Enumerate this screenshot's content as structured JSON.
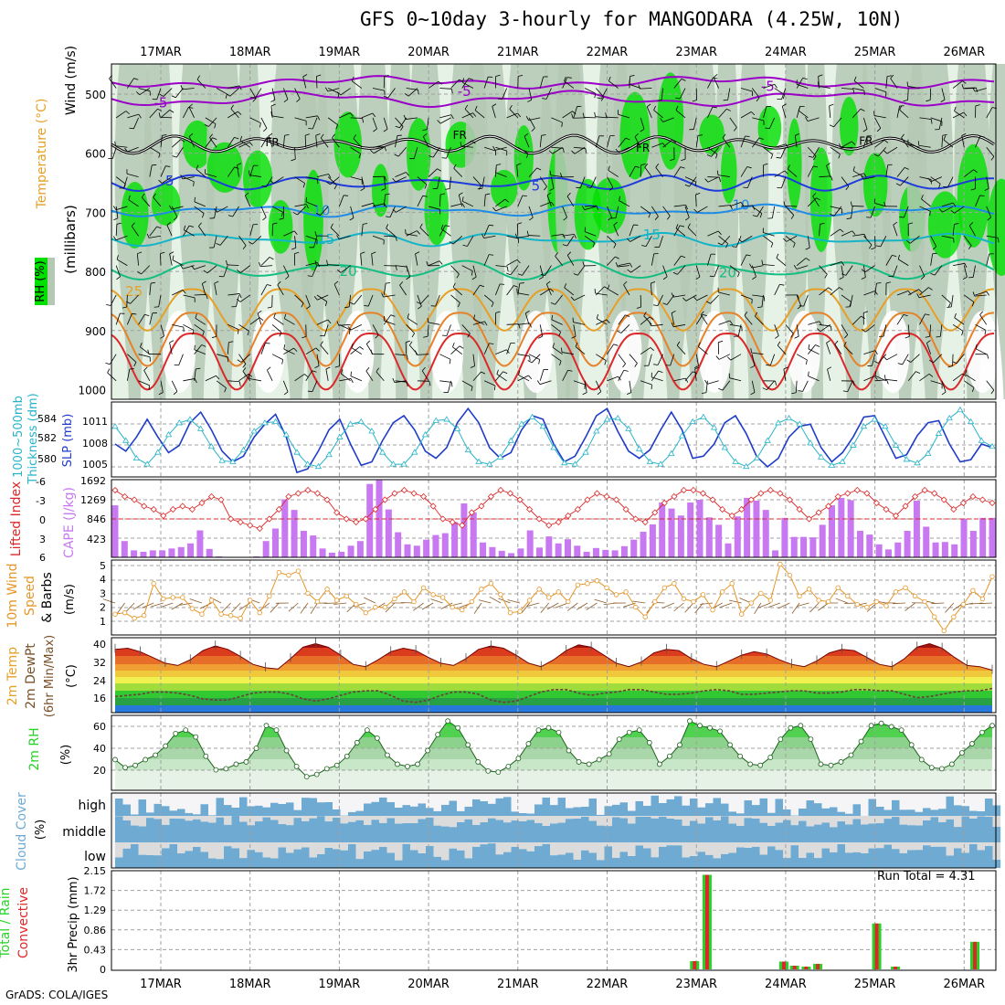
{
  "title": "GFS 0~10day 3-hourly for MANGODARA (4.25W, 10N)",
  "footer": "GrADS: COLA/IGES",
  "run_total_label": "Run Total = 4.31",
  "colors": {
    "rh_green": "#00e000",
    "rh_gray": "#b4c8b4",
    "rh_pale": "#e6f2e6",
    "t_purple": "#9b00c8",
    "t_blue": "#1e3cdc",
    "t_lightblue": "#1e8ce6",
    "t_cyan": "#14b4c8",
    "t_teal": "#14be82",
    "t_orange": "#e6a028",
    "t_red": "#dc2828",
    "slp": "#1e3cc8",
    "thick": "#28b4c8",
    "li": "#dc2828",
    "cape": "#c878f0",
    "wind10": "#e69628",
    "rh2m": "#28d228",
    "cloud": "#6eaad2",
    "precip_total": "#28d228",
    "precip_conv": "#dc2828"
  },
  "chart_data": [
    {
      "type": "heatmap",
      "panel": "upper-air",
      "ylabels": [
        "Wind (m/s)",
        "Temperature (°C)",
        "RH (%)",
        "(millibars)"
      ],
      "yticks": [
        500,
        600,
        700,
        800,
        900,
        1000
      ],
      "x": [
        "17MAR",
        "18MAR",
        "19MAR",
        "20MAR",
        "21MAR",
        "22MAR",
        "23MAR",
        "24MAR",
        "25MAR",
        "26MAR"
      ],
      "contour_labels": [
        {
          "label": "-5",
          "level": 515,
          "day": 0.0
        },
        {
          "label": "-5",
          "level": 495,
          "day": 3.4
        },
        {
          "label": "-5",
          "level": 487,
          "day": 6.8
        },
        {
          "label": "FR",
          "level": 580,
          "day": 1.25
        },
        {
          "label": "FR",
          "level": 568,
          "day": 3.35
        },
        {
          "label": "FR",
          "level": 590,
          "day": 5.4
        },
        {
          "label": "FR",
          "level": 578,
          "day": 7.9
        },
        {
          "label": "5",
          "level": 647,
          "day": 0.1
        },
        {
          "label": "5",
          "level": 655,
          "day": 4.2
        },
        {
          "label": "10",
          "level": 697,
          "day": 1.8
        },
        {
          "label": "10",
          "level": 688,
          "day": 6.5
        },
        {
          "label": "15",
          "level": 746,
          "day": 1.85
        },
        {
          "label": "15",
          "level": 738,
          "day": 5.5
        },
        {
          "label": "20",
          "level": 800,
          "day": 2.1
        },
        {
          "label": "20",
          "level": 802,
          "day": 6.35
        },
        {
          "label": "25",
          "level": 834,
          "day": -0.3
        }
      ]
    },
    {
      "type": "line",
      "panel": "slp-thickness",
      "ylabel_left": "1000~500mb Thickness (dm)",
      "ylabel_right": "SLP (mb)",
      "yticks_left": [
        580,
        582,
        584
      ],
      "yticks_right": [
        1005,
        1008,
        1011
      ],
      "series": [
        {
          "name": "SLP (mb)",
          "axis": "right",
          "values": [
            1008.0,
            1007.0,
            1009.0,
            1011.5,
            1009.0,
            1006.8,
            1007.8,
            1011.0,
            1012.5,
            1010.0,
            1007.0,
            1005.5,
            1006.3,
            1009.0,
            1010.8,
            1012.2,
            1009.0,
            1004.0,
            1004.5,
            1007.0,
            1010.0,
            1011.5,
            1008.0,
            1005.0,
            1005.5,
            1008.5,
            1011.0,
            1012.0,
            1010.0,
            1007.0,
            1006.0,
            1007.5,
            1011.0,
            1013.0,
            1011.0,
            1007.5,
            1006.0,
            1006.8,
            1010.0,
            1012.0,
            1011.5,
            1008.0,
            1005.5,
            1006.3,
            1009.0,
            1012.0,
            1013.0,
            1009.8,
            1007.0,
            1006.0,
            1007.2,
            1010.0,
            1012.5,
            1010.0,
            1006.0,
            1006.3,
            1008.0,
            1011.0,
            1012.0,
            1009.5,
            1006.2,
            1004.8,
            1006.0,
            1009.0,
            1010.5,
            1010.8,
            1007.5,
            1005.5,
            1006.8,
            1009.0,
            1011.8,
            1012.0,
            1009.0,
            1006.0,
            1006.5,
            1009.2,
            1011.0,
            1011.3,
            1008.0,
            1005.5,
            1005.8,
            1008.0,
            1007.5
          ]
        },
        {
          "name": "1000~500mb Thickness (dm)",
          "axis": "left",
          "values": [
            583.2,
            582.0,
            580.5,
            580.0,
            581.0,
            582.5,
            583.5,
            583.8,
            583.0,
            581.5,
            580.3,
            580.2,
            581.2,
            582.8,
            583.5,
            583.6,
            582.5,
            581.0,
            580.0,
            579.8,
            580.8,
            582.3,
            583.4,
            583.6,
            582.8,
            581.0,
            580.0,
            580.0,
            581.0,
            582.5,
            583.7,
            583.8,
            583.0,
            581.2,
            580.2,
            580.0,
            580.6,
            582.0,
            583.4,
            584.0,
            583.2,
            581.4,
            580.1,
            580.0,
            581.0,
            582.8,
            583.8,
            583.9,
            583.0,
            581.3,
            580.2,
            580.0,
            580.9,
            582.4,
            583.6,
            584.0,
            583.1,
            581.4,
            580.2,
            579.8,
            580.5,
            582.0,
            583.5,
            583.9,
            583.4,
            581.8,
            580.6,
            579.9,
            580.2,
            581.6,
            583.2,
            583.8,
            583.2,
            581.6,
            580.4,
            580.1,
            580.9,
            582.6,
            583.9,
            584.6,
            583.6,
            582.0,
            581.5
          ]
        }
      ]
    },
    {
      "type": "bar",
      "panel": "cape-lifted-index",
      "ylabel_left": "Lifted Index",
      "ylabel_right": "CAPE (J/kg)",
      "yticks_left": [
        -6,
        -3,
        0,
        3,
        6
      ],
      "yticks_right": [
        423,
        846,
        1269,
        1692
      ],
      "series": [
        {
          "name": "CAPE (J/kg)",
          "values": [
            1120,
            350,
            150,
            120,
            150,
            150,
            190,
            220,
            300,
            580,
            180,
            20,
            10,
            10,
            10,
            20,
            350,
            620,
            1250,
            1020,
            570,
            470,
            190,
            100,
            120,
            250,
            350,
            1580,
            1660,
            1030,
            540,
            280,
            250,
            380,
            480,
            520,
            760,
            1160,
            970,
            320,
            220,
            140,
            90,
            190,
            580,
            210,
            450,
            300,
            390,
            250,
            120,
            200,
            160,
            150,
            240,
            380,
            550,
            710,
            1180,
            1050,
            900,
            1180,
            1240,
            860,
            700,
            300,
            880,
            1280,
            1220,
            1020,
            150,
            850,
            440,
            440,
            430,
            700,
            1120,
            1280,
            1230,
            570,
            490,
            280,
            170,
            320,
            570,
            1220,
            660,
            320,
            330,
            280,
            830,
            570,
            850,
            850
          ]
        },
        {
          "name": "Lifted Index",
          "values": [
            -4.5,
            -3.5,
            -3.0,
            -2.0,
            -1.5,
            -0.5,
            -1.5,
            -2.0,
            -1.5,
            -2.5,
            -3.5,
            -3.0,
            0.0,
            0.5,
            1.0,
            1.5,
            0.0,
            -1.5,
            -3.5,
            -4.0,
            -4.5,
            -4.0,
            -3.0,
            -1.0,
            0.0,
            0.5,
            0.0,
            -1.5,
            -3.0,
            -4.0,
            -4.5,
            -4.0,
            -3.5,
            -2.0,
            0.0,
            0.5,
            1.0,
            -1.0,
            -2.0,
            -3.5,
            -4.5,
            -4.0,
            -3.0,
            -1.5,
            0.0,
            1.0,
            0.5,
            -0.5,
            -1.5,
            -3.0,
            -4.0,
            -3.5,
            -3.0,
            -1.5,
            0.0,
            0.5,
            -1.0,
            -2.5,
            -3.5,
            -4.5,
            -4.5,
            -4.0,
            -3.0,
            -1.5,
            -0.5,
            -1.5,
            -3.0,
            -4.0,
            -4.5,
            -4.0,
            -3.0,
            -1.5,
            0.0,
            -1.0,
            -2.0,
            -3.5,
            -4.0,
            -4.5,
            -4.0,
            -2.5,
            -1.5,
            -0.5,
            -2.0,
            -3.5,
            -4.5,
            -4.0,
            -3.0,
            -1.5,
            -2.5,
            -3.5,
            -3.0,
            -2.5
          ]
        }
      ]
    },
    {
      "type": "line",
      "panel": "10m-wind",
      "ylabel": "10m Wind Speed & Barbs (m/s)",
      "yticks": [
        1,
        2,
        3,
        4,
        5
      ],
      "series": [
        {
          "name": "10m Wind Speed",
          "values": [
            1.5,
            1.6,
            1.2,
            1.4,
            3.7,
            2.6,
            2.7,
            2.7,
            1.9,
            1.5,
            2.5,
            1.5,
            1.4,
            1.2,
            2.5,
            1.6,
            2.8,
            4.5,
            4.3,
            4.6,
            3.0,
            2.4,
            3.3,
            2.5,
            2.8,
            2.2,
            1.6,
            2.0,
            2.0,
            2.6,
            3.1,
            2.4,
            3.4,
            2.9,
            2.7,
            2.0,
            1.8,
            2.4,
            3.3,
            3.7,
            2.9,
            1.6,
            1.7,
            2.5,
            3.3,
            2.7,
            3.1,
            2.4,
            3.6,
            3.7,
            3.9,
            3.4,
            2.9,
            3.1,
            2.0,
            1.3,
            2.4,
            3.4,
            3.7,
            2.6,
            2.4,
            2.9,
            1.8,
            3.1,
            3.7,
            1.5,
            2.3,
            3.0,
            2.5,
            5.1,
            4.3,
            2.8,
            3.3,
            2.5,
            2.4,
            3.4,
            2.8,
            2.2,
            2.0,
            2.4,
            2.1,
            3.1,
            3.4,
            2.8,
            2.4,
            1.3,
            0.3,
            1.3,
            2.2,
            3.2,
            2.6,
            4.2
          ]
        }
      ]
    },
    {
      "type": "area",
      "panel": "2m-temp",
      "ylabel": "2m Temp 2m DewPt (6hr Min/Max) (°C)",
      "yticks": [
        16,
        24,
        32,
        40
      ],
      "series": [
        {
          "name": "2m Temp",
          "values": [
            37.5,
            38.0,
            36.5,
            34.0,
            31.5,
            30.5,
            33.0,
            37.0,
            39.0,
            37.5,
            34.5,
            31.0,
            29.5,
            29.0,
            33.5,
            38.5,
            40.0,
            38.5,
            35.0,
            31.0,
            30.0,
            33.0,
            36.5,
            38.0,
            37.0,
            34.0,
            31.5,
            30.5,
            33.5,
            37.5,
            39.0,
            38.0,
            35.0,
            31.5,
            30.0,
            33.0,
            37.0,
            39.5,
            38.5,
            35.0,
            31.5,
            30.0,
            32.0,
            36.0,
            37.5,
            37.0,
            33.5,
            31.0,
            30.0,
            32.5,
            35.0,
            36.5,
            35.5,
            33.0,
            31.0,
            30.0,
            32.5,
            36.0,
            37.5,
            37.0,
            34.0,
            31.0,
            30.0,
            33.5,
            38.5,
            40.0,
            38.0,
            34.0,
            30.5,
            30.0,
            28.5
          ]
        },
        {
          "name": "2m DewPt",
          "values": [
            17.0,
            17.5,
            18.0,
            19.0,
            19.0,
            18.5,
            17.5,
            16.0,
            15.5,
            15.5,
            17.0,
            18.5,
            19.0,
            19.0,
            18.0,
            16.0,
            15.0,
            16.0,
            17.5,
            19.0,
            19.5,
            19.5,
            17.5,
            15.0,
            14.5,
            15.5,
            17.5,
            19.0,
            19.0,
            18.0,
            15.5,
            14.5,
            15.0,
            17.0,
            19.0,
            20.0,
            20.0,
            18.5,
            17.5,
            18.5,
            19.0,
            20.0,
            20.0,
            19.0,
            18.0,
            18.0,
            18.5,
            19.5,
            20.0,
            19.5,
            18.0,
            18.0,
            18.5,
            19.0,
            19.5,
            19.5,
            18.5,
            18.5,
            19.0,
            20.0,
            20.0,
            19.5,
            19.5,
            18.0,
            16.5,
            17.0,
            18.0,
            19.0,
            19.5,
            19.5,
            20.5
          ]
        }
      ]
    },
    {
      "type": "area",
      "panel": "2m-rh",
      "ylabel": "2m RH (%)",
      "yticks": [
        20,
        40,
        60
      ],
      "series": [
        {
          "name": "2m RH",
          "values": [
            32,
            25,
            27,
            32,
            36,
            44,
            55,
            58,
            52,
            35,
            23,
            24,
            28,
            30,
            42,
            62,
            58,
            40,
            26,
            17,
            19,
            24,
            27,
            35,
            47,
            58,
            51,
            36,
            28,
            26,
            28,
            40,
            54,
            66,
            60,
            45,
            30,
            22,
            21,
            26,
            33,
            46,
            58,
            60,
            56,
            40,
            30,
            28,
            32,
            37,
            50,
            56,
            58,
            47,
            28,
            35,
            45,
            66,
            62,
            60,
            57,
            45,
            35,
            28,
            27,
            34,
            50,
            60,
            62,
            50,
            28,
            27,
            30,
            36,
            48,
            62,
            64,
            61,
            58,
            45,
            32,
            25,
            24,
            28,
            38,
            46,
            56,
            62
          ]
        }
      ]
    },
    {
      "type": "heatmap",
      "panel": "cloud-cover",
      "ylabel": "Cloud Cover (%)",
      "rows": [
        "high",
        "middle",
        "low"
      ]
    },
    {
      "type": "bar",
      "panel": "precip",
      "ylabel": "3hr Precip (mm)",
      "legend": [
        "Total / Rain",
        "Convective"
      ],
      "yticks": [
        0,
        0.43,
        0.86,
        1.29,
        1.72,
        2.15
      ],
      "bars": [
        {
          "day": 5.98,
          "total": 0.18,
          "conv": 0.18
        },
        {
          "day": 6.12,
          "total": 2.06,
          "conv": 2.06
        },
        {
          "day": 6.98,
          "total": 0.17,
          "conv": 0.17
        },
        {
          "day": 7.1,
          "total": 0.08,
          "conv": 0.08
        },
        {
          "day": 7.23,
          "total": 0.06,
          "conv": 0.06
        },
        {
          "day": 7.36,
          "total": 0.12,
          "conv": 0.12
        },
        {
          "day": 8.02,
          "total": 1.0,
          "conv": 1.0
        },
        {
          "day": 8.23,
          "total": 0.06,
          "conv": 0.06
        },
        {
          "day": 9.12,
          "total": 0.6,
          "conv": 0.6
        }
      ]
    }
  ]
}
